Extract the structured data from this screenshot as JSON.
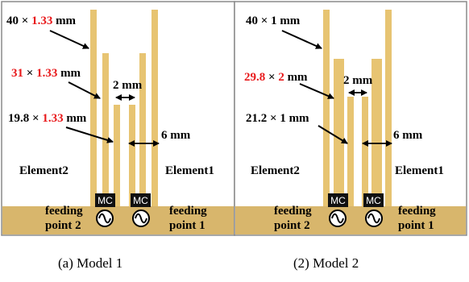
{
  "panels": [
    {
      "dim_top_w": "40",
      "dim_top_t": "1.33",
      "dim_mid_w": "31",
      "dim_mid_t": "1.33",
      "dim_low_w": "19.8",
      "dim_low_t": "1.33",
      "gap_label": "2 mm",
      "spacing_label": "6 mm",
      "element_left": "Element2",
      "element_right": "Element1",
      "feed_left_1": "feeding",
      "feed_left_2": "point 2",
      "feed_right_1": "feeding",
      "feed_right_2": "point 1",
      "caption": "(a)  Model 1"
    },
    {
      "dim_top_w": "40",
      "dim_top_t": "1",
      "dim_mid_w": "29.8",
      "dim_mid_t": "2",
      "dim_low_w": "21.2",
      "dim_low_t": "1",
      "gap_label": "2 mm",
      "spacing_label": "6 mm",
      "element_left": "Element2",
      "element_right": "Element1",
      "feed_left_1": "feeding",
      "feed_left_2": "point 2",
      "feed_right_1": "feeding",
      "feed_right_2": "point 1",
      "caption": "(2)  Model 2"
    }
  ],
  "symbols": {
    "times": "×",
    "unit": "mm",
    "mc": "MC"
  },
  "colors": {
    "antenna": "#e7c472",
    "ground": "#d8b66c",
    "highlight": "#e8181a",
    "border": "#8a8a8a"
  }
}
